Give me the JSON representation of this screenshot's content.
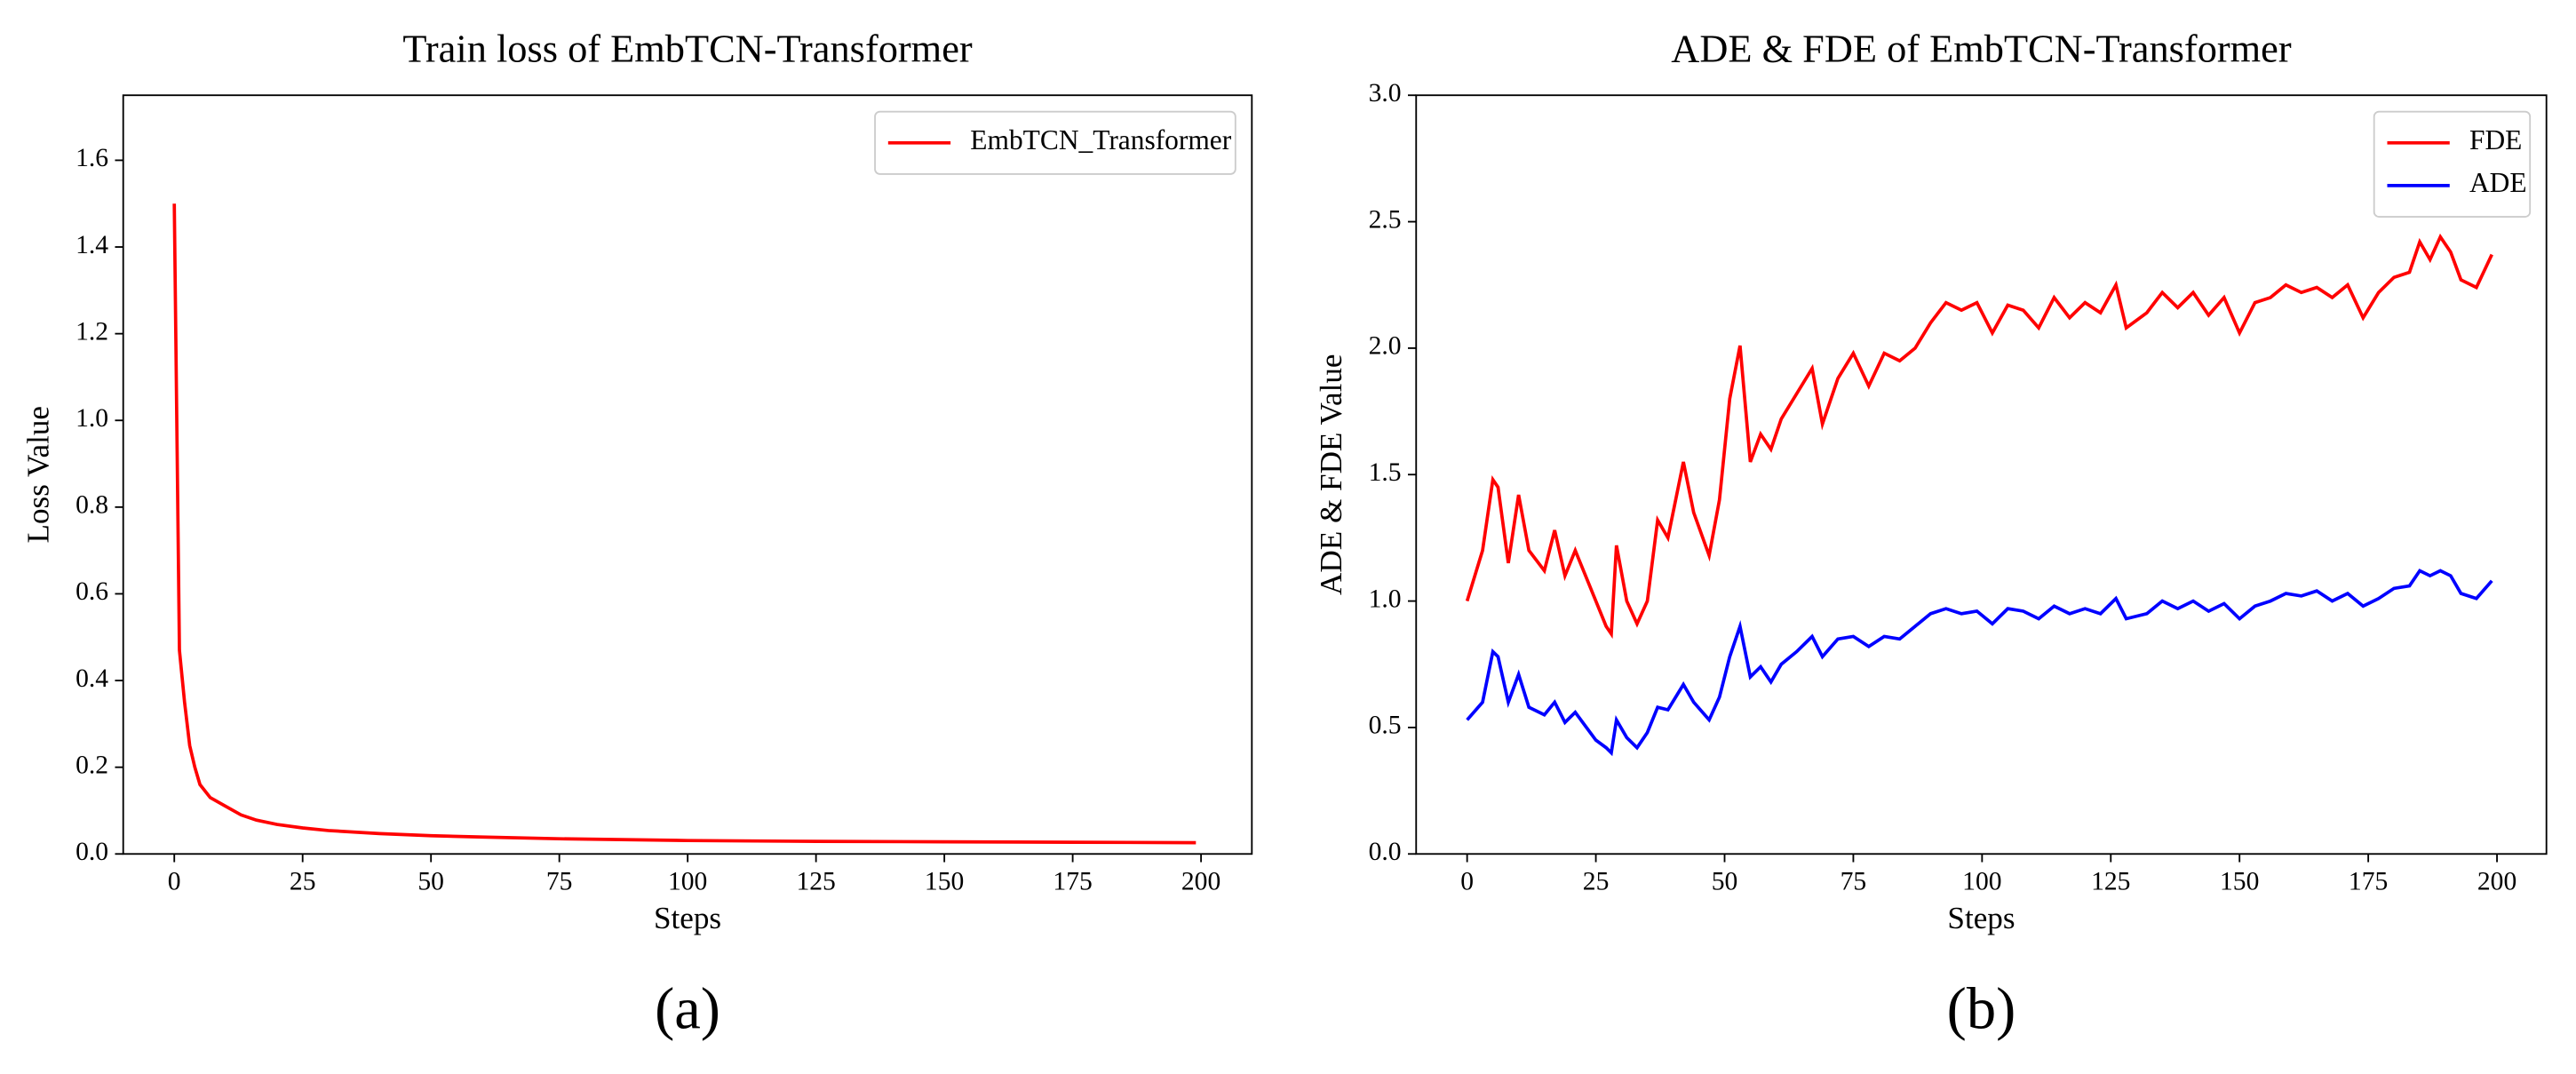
{
  "chart_data": [
    {
      "type": "line",
      "title": "Train loss of EmbTCN-Transformer",
      "xlabel": "Steps",
      "ylabel": "Loss Value",
      "caption": "(a)",
      "x": [
        0,
        1,
        2,
        3,
        4,
        5,
        7,
        10,
        13,
        16,
        20,
        25,
        30,
        40,
        50,
        60,
        75,
        100,
        125,
        150,
        175,
        199
      ],
      "series": [
        {
          "name": "EmbTCN_Transformer",
          "color": "#ff0000",
          "values": [
            1.5,
            0.47,
            0.35,
            0.25,
            0.2,
            0.16,
            0.13,
            0.11,
            0.09,
            0.078,
            0.068,
            0.06,
            0.054,
            0.047,
            0.042,
            0.039,
            0.035,
            0.031,
            0.029,
            0.028,
            0.027,
            0.026
          ]
        }
      ],
      "xlim": [
        -9.95,
        209.9
      ],
      "ylim": [
        0,
        1.75
      ],
      "xticks": [
        0,
        25,
        50,
        75,
        100,
        125,
        150,
        175,
        200
      ],
      "yticks": [
        {
          "value": 0,
          "label": "0.0"
        },
        0.2,
        0.4,
        0.6,
        0.8,
        {
          "value": 1,
          "label": "1.0"
        },
        1.2,
        1.4,
        1.6
      ],
      "legend": "upper right"
    },
    {
      "type": "line",
      "title": "ADE & FDE of EmbTCN-Transformer",
      "xlabel": "Steps",
      "ylabel": "ADE & FDE Value",
      "caption": "(b)",
      "x": [
        0,
        3,
        5,
        6,
        8,
        10,
        12,
        15,
        17,
        19,
        21,
        25,
        27,
        28,
        29,
        31,
        33,
        35,
        37,
        39,
        42,
        44,
        47,
        49,
        51,
        53,
        55,
        57,
        59,
        61,
        64,
        67,
        69,
        72,
        75,
        78,
        81,
        84,
        87,
        90,
        93,
        96,
        99,
        102,
        105,
        108,
        111,
        114,
        117,
        120,
        123,
        126,
        128,
        132,
        135,
        138,
        141,
        144,
        147,
        150,
        153,
        156,
        159,
        162,
        165,
        168,
        171,
        174,
        177,
        180,
        183,
        185,
        187,
        189,
        191,
        193,
        196,
        199
      ],
      "series": [
        {
          "name": "FDE",
          "color": "#ff0000",
          "values": [
            1.0,
            1.2,
            1.48,
            1.45,
            1.15,
            1.42,
            1.2,
            1.12,
            1.28,
            1.1,
            1.2,
            1.0,
            0.9,
            0.87,
            1.22,
            1.0,
            0.91,
            1.0,
            1.32,
            1.25,
            1.55,
            1.35,
            1.18,
            1.4,
            1.8,
            2.01,
            1.55,
            1.66,
            1.6,
            1.72,
            1.82,
            1.92,
            1.7,
            1.88,
            1.98,
            1.85,
            1.98,
            1.95,
            2.0,
            2.1,
            2.18,
            2.15,
            2.18,
            2.06,
            2.17,
            2.15,
            2.08,
            2.2,
            2.12,
            2.18,
            2.14,
            2.25,
            2.08,
            2.14,
            2.22,
            2.16,
            2.22,
            2.13,
            2.2,
            2.06,
            2.18,
            2.2,
            2.25,
            2.22,
            2.24,
            2.2,
            2.25,
            2.12,
            2.22,
            2.28,
            2.3,
            2.42,
            2.35,
            2.44,
            2.38,
            2.27,
            2.24,
            2.37
          ]
        },
        {
          "name": "ADE",
          "color": "#0000ff",
          "values": [
            0.53,
            0.6,
            0.8,
            0.78,
            0.6,
            0.71,
            0.58,
            0.55,
            0.6,
            0.52,
            0.56,
            0.45,
            0.42,
            0.4,
            0.53,
            0.46,
            0.42,
            0.48,
            0.58,
            0.57,
            0.67,
            0.6,
            0.53,
            0.62,
            0.78,
            0.9,
            0.7,
            0.74,
            0.68,
            0.75,
            0.8,
            0.86,
            0.78,
            0.85,
            0.86,
            0.82,
            0.86,
            0.85,
            0.9,
            0.95,
            0.97,
            0.95,
            0.96,
            0.91,
            0.97,
            0.96,
            0.93,
            0.98,
            0.95,
            0.97,
            0.95,
            1.01,
            0.93,
            0.95,
            1.0,
            0.97,
            1.0,
            0.96,
            0.99,
            0.93,
            0.98,
            1.0,
            1.03,
            1.02,
            1.04,
            1.0,
            1.03,
            0.98,
            1.01,
            1.05,
            1.06,
            1.12,
            1.1,
            1.12,
            1.1,
            1.03,
            1.01,
            1.08
          ]
        }
      ],
      "xlim": [
        -9.9,
        209.6
      ],
      "ylim": [
        0,
        3
      ],
      "xticks": [
        0,
        25,
        50,
        75,
        100,
        125,
        150,
        175,
        200
      ],
      "yticks": [
        {
          "value": 0,
          "label": "0.0"
        },
        0.5,
        {
          "value": 1,
          "label": "1.0"
        },
        1.5,
        {
          "value": 2,
          "label": "2.0"
        },
        2.5,
        {
          "value": 3,
          "label": "3.0"
        }
      ],
      "legend": "upper right"
    }
  ]
}
